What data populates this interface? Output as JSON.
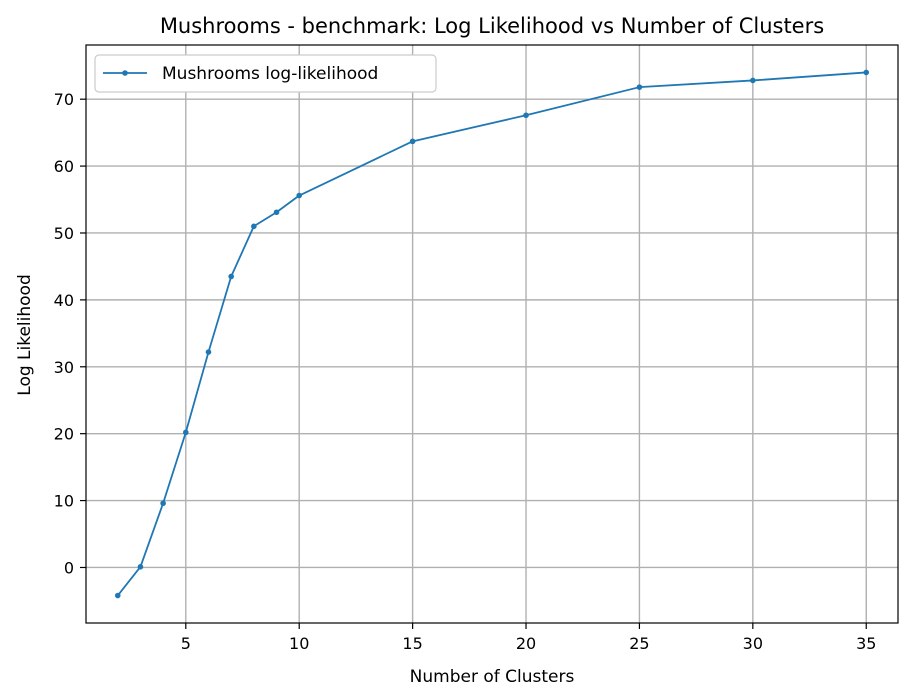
{
  "chart_data": {
    "type": "line",
    "title": "Mushrooms - benchmark: Log Likelihood vs Number of Clusters",
    "xlabel": "Number of Clusters",
    "ylabel": "Log Likelihood",
    "xlim": [
      0.6,
      36.4
    ],
    "ylim": [
      -8.3,
      78.1
    ],
    "xticks": [
      5,
      10,
      15,
      20,
      25,
      30,
      35
    ],
    "yticks": [
      0,
      10,
      20,
      30,
      40,
      50,
      60,
      70
    ],
    "grid": true,
    "legend_position": "top-left",
    "series": [
      {
        "name": "Mushrooms log-likelihood",
        "color": "#1f77b4",
        "marker": "circle",
        "x": [
          2,
          3,
          4,
          5,
          6,
          7,
          8,
          9,
          10,
          15,
          20,
          25,
          30,
          35
        ],
        "y": [
          -4.2,
          0.1,
          9.6,
          20.2,
          32.2,
          43.5,
          51.0,
          53.1,
          55.6,
          63.7,
          67.6,
          71.8,
          72.8,
          74.0
        ]
      }
    ]
  }
}
